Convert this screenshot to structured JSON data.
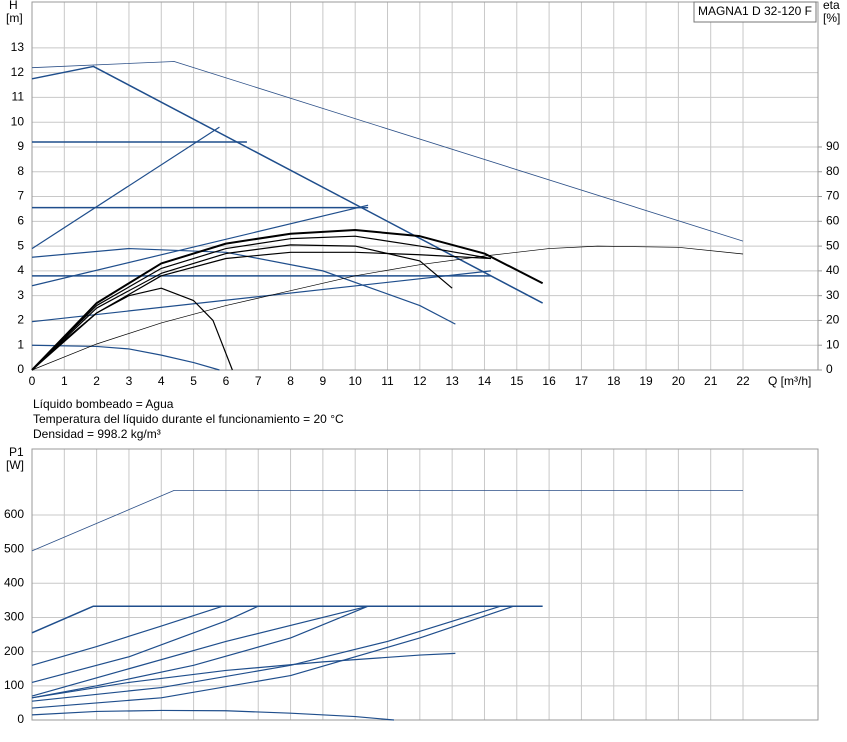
{
  "chart_data": [
    {
      "type": "line",
      "y_label": "H",
      "y_unit": "[m]",
      "y2_label": "eta",
      "y2_unit": "[%]",
      "x_label": "Q [m³/h]",
      "annotation": "MAGNA1 D 32-120 F",
      "xlim": [
        0,
        24.32
      ],
      "xticks": [
        0,
        1,
        2,
        3,
        4,
        5,
        6,
        7,
        8,
        9,
        10,
        11,
        12,
        13,
        14,
        15,
        16,
        17,
        18,
        19,
        20,
        21,
        22
      ],
      "show_xtick_labels": true,
      "ylim": [
        0,
        14.85
      ],
      "yticks": [
        0,
        1,
        2,
        3,
        4,
        5,
        6,
        7,
        8,
        9,
        10,
        11,
        12,
        13
      ],
      "y2lim": [
        0,
        148.5
      ],
      "y2ticks": [
        0,
        10,
        20,
        30,
        40,
        50,
        60,
        70,
        80,
        90
      ],
      "grid": true,
      "series": [
        {
          "color": "#2b4f87",
          "line_width": 0.8,
          "x": [
            0,
            4.4,
            22
          ],
          "values": [
            12.2,
            12.45,
            5.2
          ]
        },
        {
          "color": "#1f4e8c",
          "line_width": 1.5,
          "x": [
            0,
            1.9,
            15.8
          ],
          "values": [
            11.75,
            12.25,
            2.7
          ]
        },
        {
          "color": "#1f4e8c",
          "line_width": 1.5,
          "x": [
            0,
            6.65
          ],
          "values": [
            9.2,
            9.2
          ]
        },
        {
          "color": "#1f4e8c",
          "line_width": 1.5,
          "x": [
            0,
            10.4
          ],
          "values": [
            6.55,
            6.55
          ]
        },
        {
          "color": "#1f4e8c",
          "line_width": 1.5,
          "x": [
            0,
            14.2
          ],
          "values": [
            3.8,
            3.8
          ]
        },
        {
          "color": "#1f4e8c",
          "line_width": 1.2,
          "x": [
            0,
            5.8
          ],
          "values": [
            4.9,
            9.8
          ]
        },
        {
          "color": "#1f4e8c",
          "line_width": 1.2,
          "x": [
            0,
            10.4
          ],
          "values": [
            3.4,
            6.65
          ]
        },
        {
          "color": "#1f4e8c",
          "line_width": 1.2,
          "x": [
            0,
            14.2
          ],
          "values": [
            1.95,
            4.0
          ]
        },
        {
          "color": "#1f4e8c",
          "line_width": 1.2,
          "x": [
            0,
            3,
            6,
            9,
            12,
            13.1
          ],
          "values": [
            4.55,
            4.9,
            4.75,
            4.0,
            2.6,
            1.85
          ]
        },
        {
          "color": "#1f4e8c",
          "line_width": 1.2,
          "x": [
            0,
            2,
            3,
            4,
            5,
            5.8
          ],
          "values": [
            1.0,
            0.95,
            0.85,
            0.6,
            0.3,
            0
          ]
        },
        {
          "color": "#000000",
          "line_width": 1.2,
          "x": [
            0,
            1,
            2,
            3,
            4,
            5,
            5.6,
            6.2
          ],
          "values": [
            0,
            1.2,
            2.3,
            3.0,
            3.3,
            2.8,
            2.0,
            0
          ]
        },
        {
          "color": "#000000",
          "line_width": 1.2,
          "x": [
            0,
            2,
            4,
            6,
            8,
            10,
            12,
            13
          ],
          "values": [
            0,
            2.5,
            3.9,
            4.7,
            5.05,
            5.0,
            4.4,
            3.3
          ]
        },
        {
          "color": "#000000",
          "line_width": 1.2,
          "x": [
            0,
            2,
            4,
            6,
            8,
            10,
            12,
            14.2
          ],
          "values": [
            0,
            2.6,
            4.1,
            4.9,
            5.3,
            5.4,
            5.0,
            4.5
          ]
        },
        {
          "color": "#000000",
          "line_width": 2,
          "x": [
            0,
            2,
            4,
            6,
            8,
            10,
            12,
            14,
            15.8
          ],
          "values": [
            0,
            2.7,
            4.3,
            5.1,
            5.5,
            5.65,
            5.4,
            4.7,
            3.5
          ]
        },
        {
          "color": "#000000",
          "line_width": 1.2,
          "x": [
            0,
            2,
            4,
            6,
            8,
            10,
            12,
            14.2
          ],
          "values": [
            0,
            2.3,
            3.8,
            4.5,
            4.75,
            4.75,
            4.65,
            4.5
          ]
        },
        {
          "color": "#000000",
          "line_width": 0.7,
          "axis": "y2",
          "x": [
            0,
            2,
            4,
            6,
            8,
            10,
            12,
            14,
            16,
            17.5,
            20,
            22
          ],
          "values": [
            0,
            10.5,
            19,
            26,
            32,
            38,
            42.5,
            46,
            49,
            50,
            49.5,
            46.8
          ]
        }
      ]
    },
    {
      "type": "line",
      "y_label": "P1",
      "y_unit": "[W]",
      "xlim": [
        0,
        24.32
      ],
      "xticks": [
        0,
        1,
        2,
        3,
        4,
        5,
        6,
        7,
        8,
        9,
        10,
        11,
        12,
        13,
        14,
        15,
        16,
        17,
        18,
        19,
        20,
        21,
        22
      ],
      "show_xtick_labels": false,
      "ylim": [
        0,
        793
      ],
      "yticks": [
        0,
        100,
        200,
        300,
        400,
        500,
        600
      ],
      "grid": true,
      "series": [
        {
          "color": "#2b4f87",
          "line_width": 0.8,
          "x": [
            0,
            4.4,
            22
          ],
          "values": [
            495,
            672,
            672
          ]
        },
        {
          "color": "#1f4e8c",
          "line_width": 1.5,
          "x": [
            0,
            1.9,
            15.8
          ],
          "values": [
            255,
            333,
            333
          ]
        },
        {
          "color": "#1f4e8c",
          "line_width": 1.2,
          "x": [
            0,
            2,
            4,
            5.9
          ],
          "values": [
            160,
            215,
            275,
            333
          ]
        },
        {
          "color": "#1f4e8c",
          "line_width": 1.2,
          "x": [
            0,
            3,
            6,
            7
          ],
          "values": [
            110,
            185,
            290,
            333
          ]
        },
        {
          "color": "#1f4e8c",
          "line_width": 1.2,
          "x": [
            0,
            3,
            6,
            10.4
          ],
          "values": [
            70,
            150,
            230,
            333
          ]
        },
        {
          "color": "#1f4e8c",
          "line_width": 1.2,
          "x": [
            0,
            2,
            5,
            8,
            10.4
          ],
          "values": [
            65,
            100,
            160,
            240,
            333
          ]
        },
        {
          "color": "#1f4e8c",
          "line_width": 1.2,
          "x": [
            0,
            4,
            8,
            11,
            14.5
          ],
          "values": [
            55,
            95,
            160,
            230,
            333
          ]
        },
        {
          "color": "#1f4e8c",
          "line_width": 1.2,
          "x": [
            0,
            4,
            8,
            12,
            14.9
          ],
          "values": [
            35,
            65,
            130,
            240,
            333
          ]
        },
        {
          "color": "#1f4e8c",
          "line_width": 1.2,
          "x": [
            0,
            3,
            6,
            9,
            12,
            13.1
          ],
          "values": [
            65,
            110,
            145,
            170,
            190,
            195
          ]
        },
        {
          "color": "#1f4e8c",
          "line_width": 1.2,
          "x": [
            0,
            2,
            4,
            6,
            8,
            10,
            11.2
          ],
          "values": [
            15,
            25,
            28,
            27,
            20,
            10,
            0
          ]
        }
      ]
    }
  ],
  "conditions": [
    "Líquido bombeado = Agua",
    "Temperatura del líquido durante el funcionamiento = 20 °C",
    "Densidad = 998.2 kg/m³"
  ]
}
